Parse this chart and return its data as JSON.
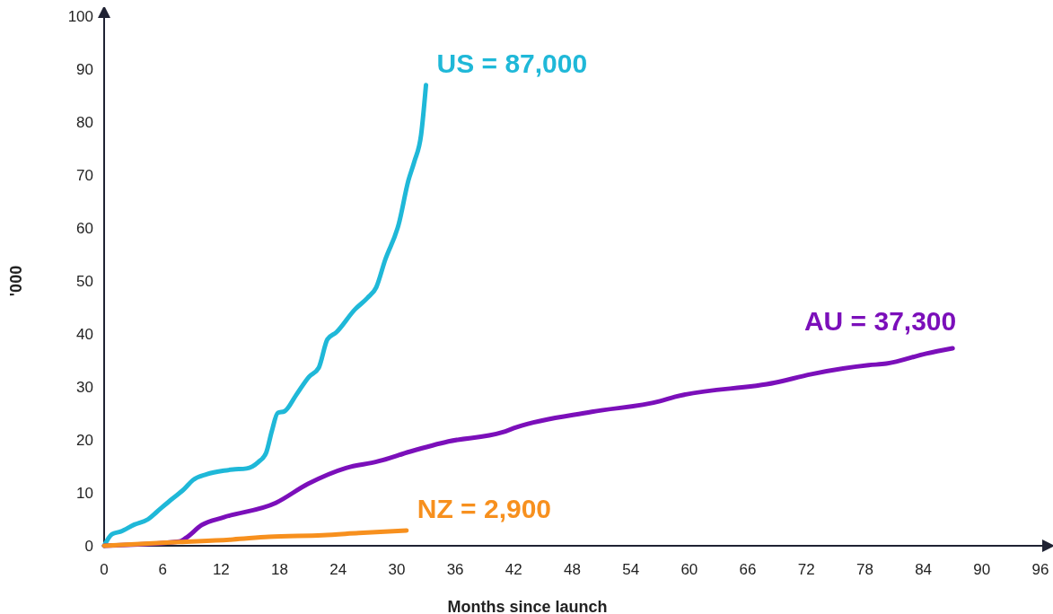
{
  "chart_data": {
    "type": "line",
    "xlabel": "Months since launch",
    "ylabel": "'000",
    "xlim": [
      0,
      96
    ],
    "ylim": [
      0,
      100
    ],
    "xticks": [
      0,
      6,
      12,
      18,
      24,
      30,
      36,
      42,
      48,
      54,
      60,
      66,
      72,
      78,
      84,
      90,
      96
    ],
    "yticks": [
      0,
      10,
      20,
      30,
      40,
      50,
      60,
      70,
      80,
      90,
      100
    ],
    "line_style": "solid",
    "marker": "none",
    "series": [
      {
        "color": "#1fb8d8",
        "x": [
          0,
          0.8,
          1.7,
          3.1,
          4.5,
          5.4,
          6.8,
          8.2,
          9.1,
          10.5,
          12.3,
          13.2,
          14.6,
          15.8,
          16.6,
          17.2,
          17.8,
          18.5,
          19.7,
          21,
          22,
          22.9,
          23.8,
          25.7,
          27,
          27.9,
          28.8,
          30.2,
          31.2,
          31.8,
          32.5,
          33
        ],
        "values": [
          0,
          2.2,
          2.7,
          4,
          5,
          6.4,
          8.6,
          10.7,
          12.4,
          13.5,
          14.2,
          14.4,
          14.6,
          15.8,
          17.5,
          21.7,
          25.1,
          25.4,
          28.5,
          31.9,
          33.6,
          39,
          40.3,
          44.6,
          46.8,
          48.8,
          53.9,
          60.7,
          69,
          72.5,
          77.6,
          87
        ]
      },
      {
        "color": "#7b0fba",
        "x": [
          0,
          7.7,
          8.4,
          10,
          12.3,
          17.6,
          20.9,
          24.8,
          28,
          31.4,
          35.3,
          40.8,
          42.3,
          50,
          57,
          58.5,
          68.8,
          72.5,
          78.4,
          80.2,
          84.3,
          87
        ],
        "values": [
          0,
          0.8,
          1.5,
          3.9,
          5.4,
          8.1,
          11.7,
          14.7,
          15.9,
          17.8,
          19.7,
          21.4,
          22.4,
          25.3,
          27.3,
          28.1,
          30.8,
          32.4,
          34.1,
          34.4,
          36.3,
          37.3
        ]
      },
      {
        "color": "#f7901e",
        "x": [
          0,
          7.7,
          13.2,
          16.9,
          22.4,
          26.1,
          31
        ],
        "values": [
          0,
          0.7,
          1.2,
          1.7,
          2,
          2.4,
          2.9
        ]
      }
    ],
    "annotations": [
      {
        "text": "US = 87,000",
        "x": 33,
        "y": 87
      },
      {
        "text": "AU = 37,300",
        "x": 87,
        "y": 37.3
      },
      {
        "text": "NZ = 2,900",
        "x": 31,
        "y": 2.9
      }
    ]
  }
}
